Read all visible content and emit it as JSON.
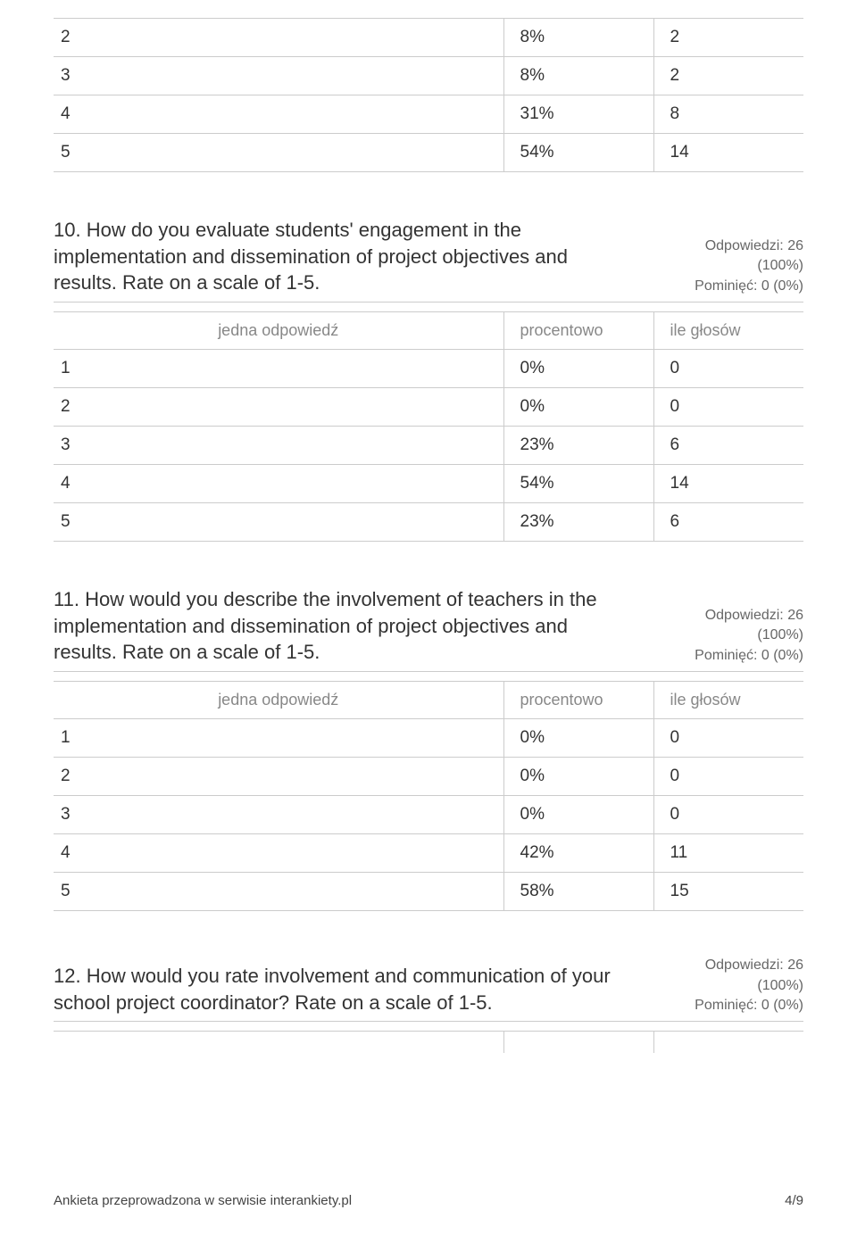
{
  "colors": {
    "text": "#333333",
    "muted": "#888888",
    "border": "#cccccc",
    "meta": "#666666",
    "background": "#ffffff"
  },
  "typography": {
    "question_fontsize": 22,
    "cell_fontsize": 19,
    "header_fontsize": 18,
    "meta_fontsize": 16,
    "footer_fontsize": 15
  },
  "headers": {
    "answer": "jedna odpowiedź",
    "percent": "procentowo",
    "count": "ile głosów"
  },
  "meta": {
    "responses_label": "Odpowiedzi: 26",
    "responses_pct": "(100%)",
    "skipped": "Pominięć: 0 (0%)"
  },
  "top_table": {
    "rows": [
      {
        "label": "2",
        "pct": "8%",
        "count": "2"
      },
      {
        "label": "3",
        "pct": "8%",
        "count": "2"
      },
      {
        "label": "4",
        "pct": "31%",
        "count": "8"
      },
      {
        "label": "5",
        "pct": "54%",
        "count": "14"
      }
    ]
  },
  "q10": {
    "text": "10.   How do you evaluate students' engagement in the implementation and dissemination of project objectives and results. Rate on a scale of 1-5.",
    "rows": [
      {
        "label": "1",
        "pct": "0%",
        "count": "0"
      },
      {
        "label": "2",
        "pct": "0%",
        "count": "0"
      },
      {
        "label": "3",
        "pct": "23%",
        "count": "6"
      },
      {
        "label": "4",
        "pct": "54%",
        "count": "14"
      },
      {
        "label": "5",
        "pct": "23%",
        "count": "6"
      }
    ]
  },
  "q11": {
    "text": "11.   How would you describe the involvement of teachers in the implementation and dissemination of project objectives and results. Rate on a scale of 1-5.",
    "rows": [
      {
        "label": "1",
        "pct": "0%",
        "count": "0"
      },
      {
        "label": "2",
        "pct": "0%",
        "count": "0"
      },
      {
        "label": "3",
        "pct": "0%",
        "count": "0"
      },
      {
        "label": "4",
        "pct": "42%",
        "count": "11"
      },
      {
        "label": "5",
        "pct": "58%",
        "count": "15"
      }
    ]
  },
  "q12": {
    "text": "12.   How would you rate involvement and communication of your school project coordinator? Rate on a scale of 1-5."
  },
  "footer": {
    "left": "Ankieta przeprowadzona w serwisie interankiety.pl",
    "right": "4/9"
  }
}
